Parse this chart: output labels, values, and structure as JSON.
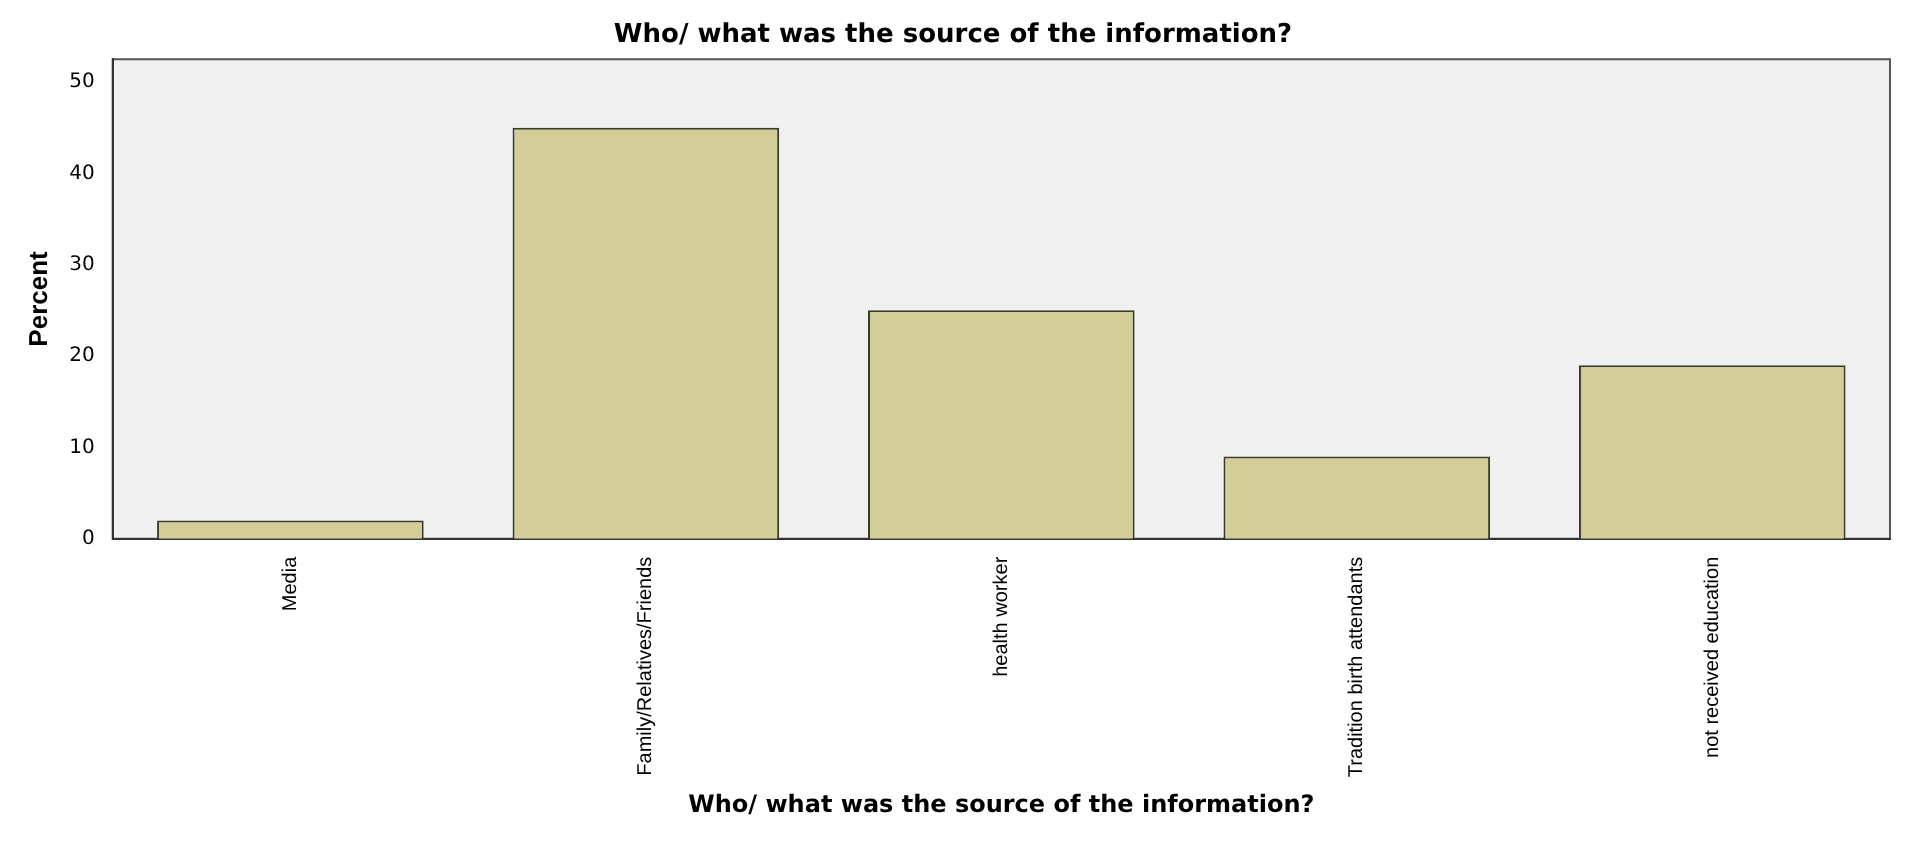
{
  "chart_data": {
    "type": "bar",
    "title": "Who/ what was the source of the information?",
    "xlabel": "Who/ what was the source of the information?",
    "ylabel": "Percent",
    "categories": [
      "Media",
      "Family/Relatives/Friends",
      "health worker",
      "Tradition birth attendants",
      "not received education"
    ],
    "values": [
      2,
      45,
      25,
      9,
      19
    ],
    "color": "#d3ce97",
    "ylim": [
      0,
      52.5
    ],
    "yticks": [
      0,
      10,
      20,
      30,
      40,
      50
    ],
    "grid": false,
    "legend": false
  }
}
